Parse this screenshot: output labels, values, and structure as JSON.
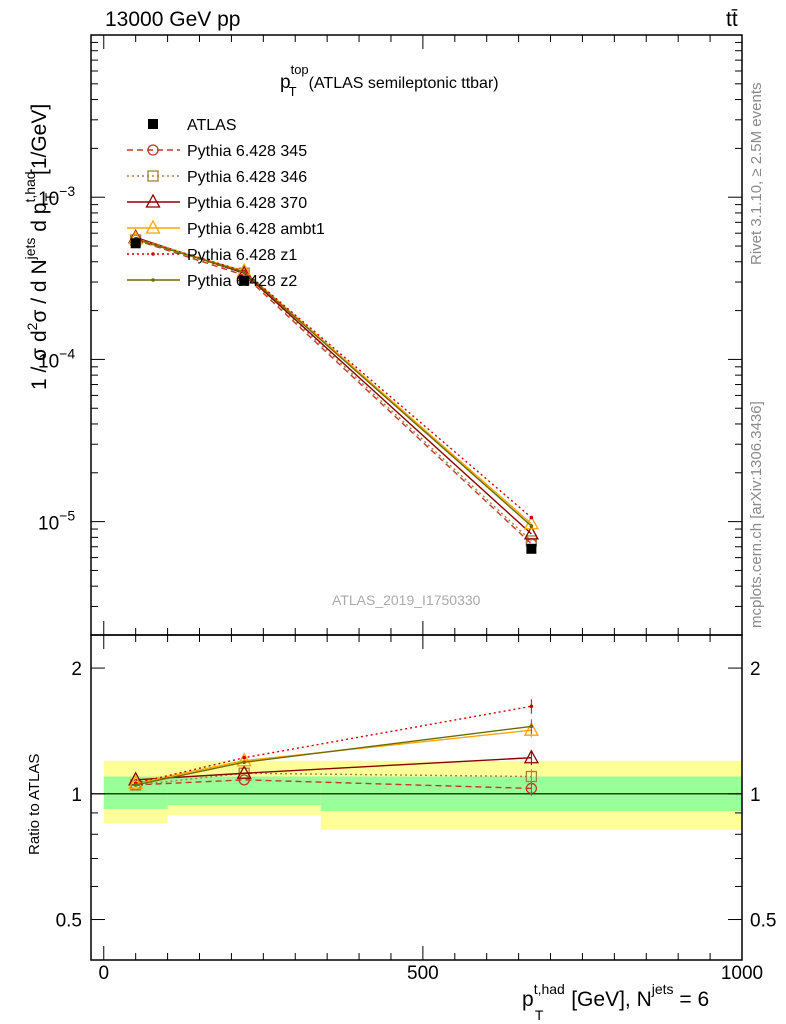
{
  "header": {
    "left": "13000 GeV pp",
    "right": "tt̄"
  },
  "side_labels": {
    "rivet": "Rivet 3.1.10, ≥ 2.5M events",
    "mcplots": "mcplots.cern.ch [arXiv:1306.3436]"
  },
  "plot_title": {
    "main": "p",
    "sup": "top",
    "sub": "T",
    "rest": "(ATLAS semileptonic ttbar)"
  },
  "watermark": "ATLAS_2019_I1750330",
  "ylabel_main": {
    "p1": "1 / σ d",
    "sup2": "2",
    "p2": "σ / d N",
    "jets": "jets",
    "p3": " d p",
    "thad": "t,had",
    "T": "T",
    "unit": " [1/GeV]"
  },
  "ylabel_ratio": "Ratio to ATLAS",
  "xlabel": {
    "p": "p",
    "sup": "t,had",
    "sub": "T",
    "mid": " [GeV], N",
    "jets": "jets",
    "end": " = 6"
  },
  "legend": [
    {
      "label": "ATLAS",
      "color": "#000000",
      "marker": "square-filled",
      "dash": "none"
    },
    {
      "label": "Pythia 6.428 345",
      "color": "#c0392b",
      "marker": "circle-open",
      "dash": "6,4"
    },
    {
      "label": "Pythia 6.428 346",
      "color": "#a08040",
      "marker": "square-open",
      "dash": "2,3"
    },
    {
      "label": "Pythia 6.428 370",
      "color": "#8b0000",
      "marker": "triangle-open",
      "dash": "none"
    },
    {
      "label": "Pythia 6.428 ambt1",
      "color": "#ffa500",
      "marker": "triangle-open",
      "dash": "none"
    },
    {
      "label": "Pythia 6.428 z1",
      "color": "#cc0000",
      "marker": "dot",
      "dash": "2,3"
    },
    {
      "label": "Pythia 6.428 z2",
      "color": "#6b6b00",
      "marker": "dot",
      "dash": "none"
    }
  ],
  "chart_data": {
    "type": "line",
    "x": [
      50,
      220,
      670
    ],
    "x_edges": [
      0,
      100,
      340,
      1000
    ],
    "xlim": [
      -20,
      1000
    ],
    "x_ticks": [
      0,
      500,
      1000
    ],
    "x_tick_labels": [
      "0",
      "500",
      "1000"
    ],
    "main": {
      "yscale": "log",
      "ylim": [
        2e-06,
        0.01
      ],
      "y_tick_labels": [
        {
          "value": 0.001,
          "base": "10",
          "exp": "−3"
        },
        {
          "value": 0.0001,
          "base": "10",
          "exp": "−4"
        },
        {
          "value": 1e-05,
          "base": "10",
          "exp": "−5"
        }
      ],
      "data": {
        "name": "ATLAS",
        "values": [
          0.00052,
          0.000305,
          6.8e-06
        ]
      },
      "series": [
        {
          "name": "Pythia 6.428 345",
          "values": [
            0.000545,
            0.00033,
            7.3e-06
          ]
        },
        {
          "name": "Pythia 6.428 346",
          "values": [
            0.000545,
            0.00034,
            7.6e-06
          ]
        },
        {
          "name": "Pythia 6.428 370",
          "values": [
            0.000565,
            0.00034,
            8.4e-06
          ]
        },
        {
          "name": "Pythia 6.428 ambt1",
          "values": [
            0.000555,
            0.00035,
            9.7e-06
          ]
        },
        {
          "name": "Pythia 6.428 z1",
          "values": [
            0.000555,
            0.00035,
            1.06e-05
          ]
        },
        {
          "name": "Pythia 6.428 z2",
          "values": [
            0.00055,
            0.000345,
            9.4e-06
          ]
        }
      ]
    },
    "ratio": {
      "yscale": "log",
      "ylim": [
        0.4,
        2.4
      ],
      "y_ticks": [
        0.5,
        1,
        2
      ],
      "y_tick_labels": [
        "0.5",
        "1",
        "2"
      ],
      "band_stat": [
        [
          0.92,
          1.1
        ],
        [
          0.94,
          1.1
        ],
        [
          0.91,
          1.1
        ]
      ],
      "band_total": [
        [
          0.85,
          1.2
        ],
        [
          0.89,
          1.2
        ],
        [
          0.82,
          1.2
        ]
      ],
      "series": [
        {
          "name": "Pythia 6.428 345",
          "values": [
            1.05,
            1.08,
            1.03
          ]
        },
        {
          "name": "Pythia 6.428 346",
          "values": [
            1.05,
            1.12,
            1.1
          ]
        },
        {
          "name": "Pythia 6.428 370",
          "values": [
            1.08,
            1.12,
            1.22
          ]
        },
        {
          "name": "Pythia 6.428 ambt1",
          "values": [
            1.06,
            1.2,
            1.42
          ]
        },
        {
          "name": "Pythia 6.428 z1",
          "values": [
            1.06,
            1.22,
            1.62
          ]
        },
        {
          "name": "Pythia 6.428 z2",
          "values": [
            1.05,
            1.19,
            1.45
          ]
        }
      ],
      "errors": [
        0,
        0,
        0.04
      ]
    }
  }
}
